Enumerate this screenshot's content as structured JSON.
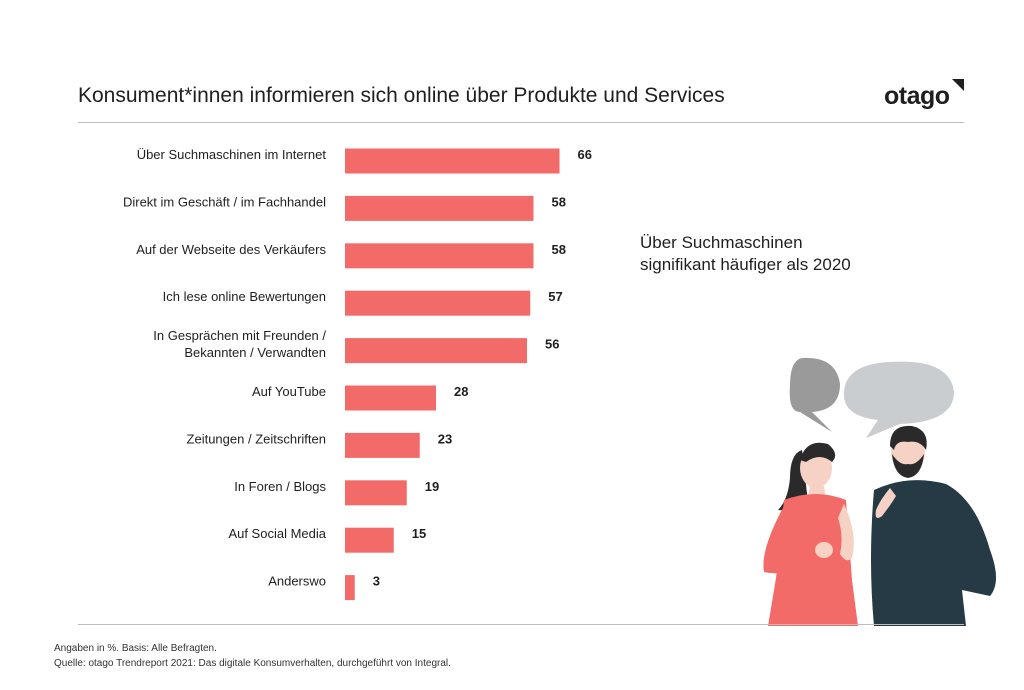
{
  "title": "Konsument*innen informieren sich online über Produkte und Services",
  "logo": "otago",
  "note_lines": [
    "Über Suchmaschinen",
    "signifikant häufiger als 2020"
  ],
  "footnote_1": "Angaben in %. Basis: Alle Befragten.",
  "footnote_2": "Quelle: otago Trendreport 2021: Das digitale Konsumverhalten, durchgeführt von Integral.",
  "colors": {
    "bar": "#f26b68",
    "text": "#1f1f1f",
    "rule": "#bdbdbd",
    "bubble_dark": "#9a9a9a",
    "bubble_light": "#c9cdd0",
    "shirt_man": "#263a45",
    "dress_woman": "#f26b68"
  },
  "chart_data": {
    "type": "bar",
    "orientation": "horizontal",
    "categories": [
      [
        "Über Suchmaschinen im Internet"
      ],
      [
        "Direkt im Geschäft / im Fachhandel"
      ],
      [
        "Auf der Webseite des Verkäufers"
      ],
      [
        "Ich lese online Bewertungen"
      ],
      [
        "In Gesprächen mit Freunden /",
        "Bekannten / Verwandten"
      ],
      [
        "Auf YouTube"
      ],
      [
        "Zeitungen / Zeitschriften"
      ],
      [
        "In Foren / Blogs"
      ],
      [
        "Auf Social Media"
      ],
      [
        "Anderswo"
      ]
    ],
    "values": [
      66,
      58,
      58,
      57,
      56,
      28,
      23,
      19,
      15,
      3
    ],
    "unit": "%",
    "grid": false,
    "legend": "none"
  }
}
